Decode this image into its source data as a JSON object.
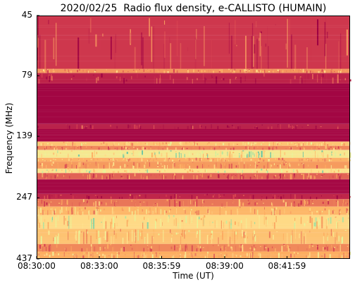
{
  "chart_data": {
    "type": "heatmap",
    "title": "2020/02/25  Radio flux density, e-CALLISTO (HUMAIN)",
    "xlabel": "Time (UT)",
    "ylabel": "Frequency (MHz)",
    "x_ticks": [
      "08:30:00",
      "08:33:00",
      "08:35:59",
      "08:39:00",
      "08:41:59"
    ],
    "y_ticks": [
      "45",
      "79",
      "139",
      "247",
      "437"
    ],
    "y_scale": "log",
    "ylim": [
      45,
      437
    ],
    "xlim": [
      "08:30:00",
      "08:45:00"
    ],
    "colormap": "Spectral_r",
    "colors": {
      "low": "#9e0142",
      "midlow": "#d53e4f",
      "mid": "#fdae61",
      "midhigh": "#fee08b",
      "high": "#e6f598",
      "peak": "#66c2a5"
    },
    "bands": [
      {
        "from": 45,
        "to": 74,
        "level": 0.22
      },
      {
        "from": 74,
        "to": 77,
        "level": 0.48
      },
      {
        "from": 77,
        "to": 85,
        "level": 0.14
      },
      {
        "from": 85,
        "to": 124,
        "level": 0.02
      },
      {
        "from": 124,
        "to": 130,
        "level": 0.12
      },
      {
        "from": 130,
        "to": 146,
        "level": 0.03
      },
      {
        "from": 146,
        "to": 152,
        "level": 0.62
      },
      {
        "from": 152,
        "to": 158,
        "level": 0.45
      },
      {
        "from": 158,
        "to": 170,
        "level": 0.78
      },
      {
        "from": 170,
        "to": 176,
        "level": 0.55
      },
      {
        "from": 176,
        "to": 188,
        "level": 0.5
      },
      {
        "from": 188,
        "to": 196,
        "level": 0.72
      },
      {
        "from": 196,
        "to": 208,
        "level": 0.35
      },
      {
        "from": 208,
        "to": 238,
        "level": 0.03
      },
      {
        "from": 238,
        "to": 250,
        "level": 0.15
      },
      {
        "from": 250,
        "to": 268,
        "level": 0.4
      },
      {
        "from": 268,
        "to": 290,
        "level": 0.58
      },
      {
        "from": 290,
        "to": 330,
        "level": 0.7
      },
      {
        "from": 330,
        "to": 380,
        "level": 0.62
      },
      {
        "from": 380,
        "to": 408,
        "level": 0.45
      },
      {
        "from": 408,
        "to": 437,
        "level": 0.55
      }
    ]
  }
}
